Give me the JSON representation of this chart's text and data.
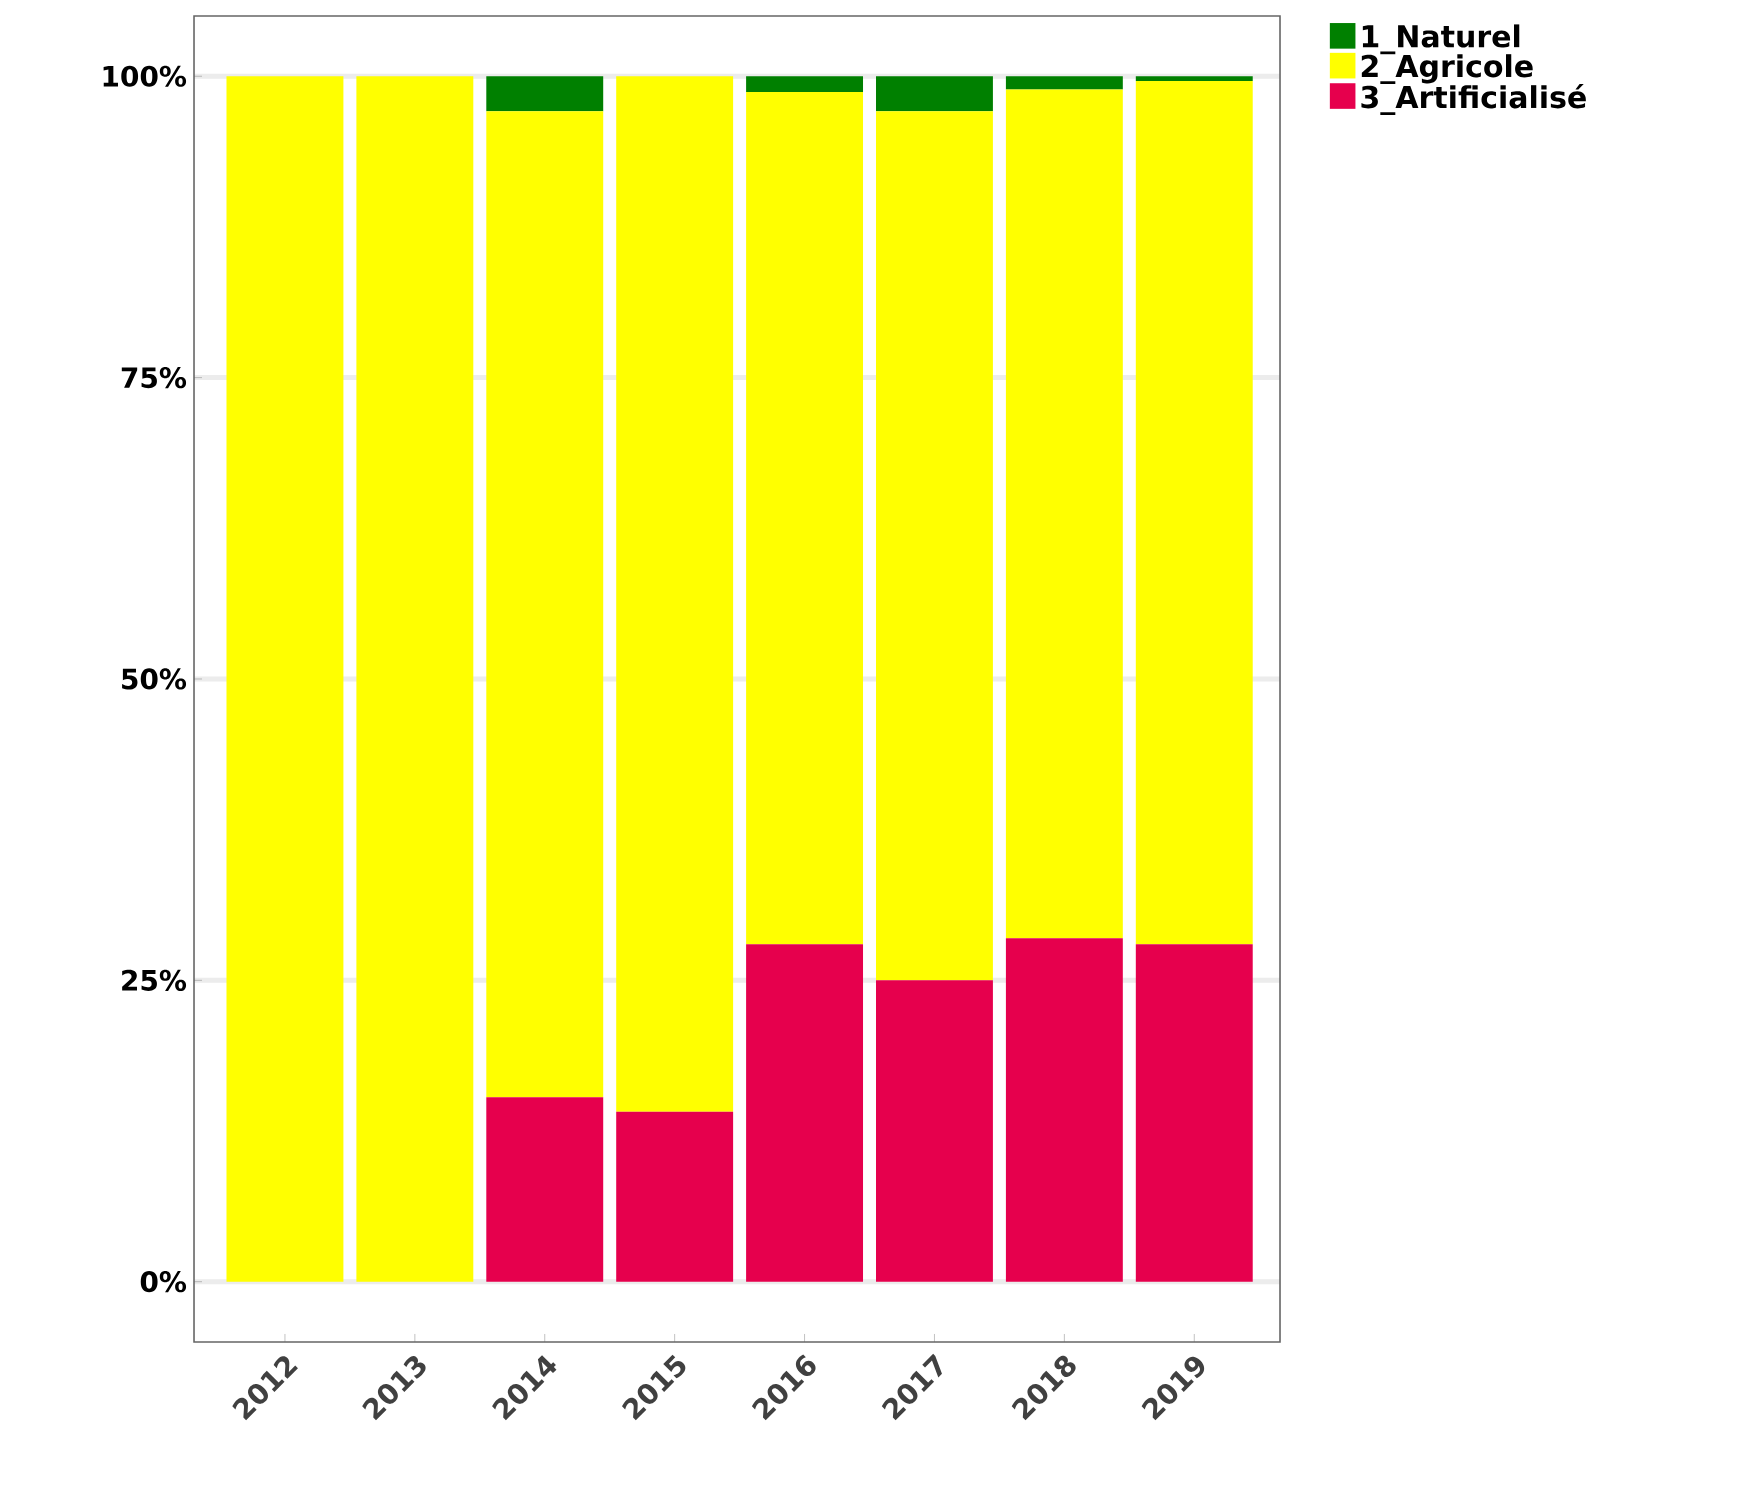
{
  "chart_data": {
    "type": "bar",
    "stacked": true,
    "categories": [
      "2012",
      "2013",
      "2014",
      "2015",
      "2016",
      "2017",
      "2018",
      "2019"
    ],
    "series": [
      {
        "name": "3_Artificialisé",
        "color": "#e6004d",
        "values": [
          0,
          0,
          15.3,
          14.1,
          28.0,
          25.0,
          28.5,
          28.0
        ]
      },
      {
        "name": "2_Agricole",
        "color": "#ffff00",
        "values": [
          100,
          100,
          81.8,
          85.9,
          70.7,
          72.1,
          70.4,
          71.6
        ]
      },
      {
        "name": "1_Naturel",
        "color": "#008000",
        "values": [
          0,
          0,
          2.9,
          0,
          1.3,
          2.9,
          1.1,
          0.4
        ]
      }
    ],
    "ylim": [
      -5,
      105
    ],
    "yticks": [
      {
        "value": 0,
        "label": "0%"
      },
      {
        "value": 25,
        "label": "25%"
      },
      {
        "value": 50,
        "label": "50%"
      },
      {
        "value": 75,
        "label": "75%"
      },
      {
        "value": 100,
        "label": "100%"
      }
    ],
    "grid": "y",
    "legend": "top right"
  }
}
